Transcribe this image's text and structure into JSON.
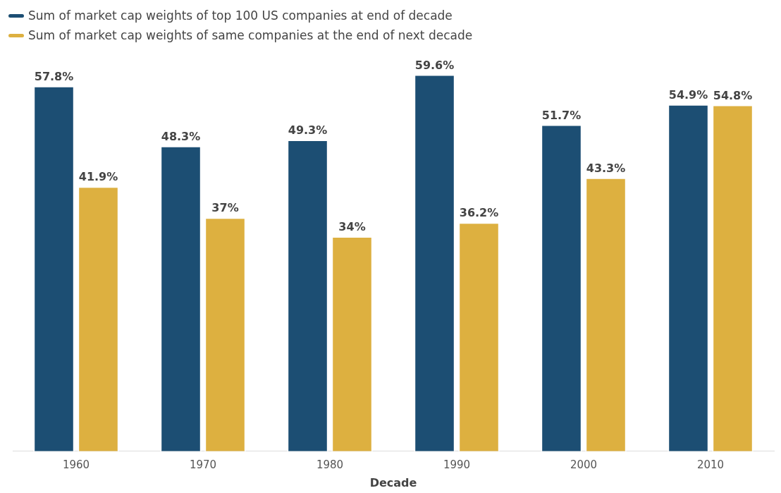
{
  "chart_data": {
    "type": "bar",
    "xlabel": "Decade",
    "categories": [
      "1960",
      "1970",
      "1980",
      "1990",
      "2000",
      "2010"
    ],
    "legend": "top left",
    "grid": false,
    "tick_labels": "x",
    "series": [
      {
        "name": "Sum of market cap weights of top 100 US companies at end of decade",
        "color": "#1c4e73",
        "values": [
          57.8,
          48.3,
          49.3,
          59.6,
          51.7,
          54.9
        ],
        "value_labels": [
          "57.8%",
          "48.3%",
          "49.3%",
          "59.6%",
          "51.7%",
          "54.9%"
        ]
      },
      {
        "name": "Sum of market cap weights of same companies at the end of next decade",
        "color": "#ddb040",
        "values": [
          41.9,
          37,
          34,
          36.2,
          43.3,
          54.8
        ],
        "value_labels": [
          "41.9%",
          "37%",
          "34%",
          "36.2%",
          "43.3%",
          "54.8%"
        ]
      }
    ]
  }
}
